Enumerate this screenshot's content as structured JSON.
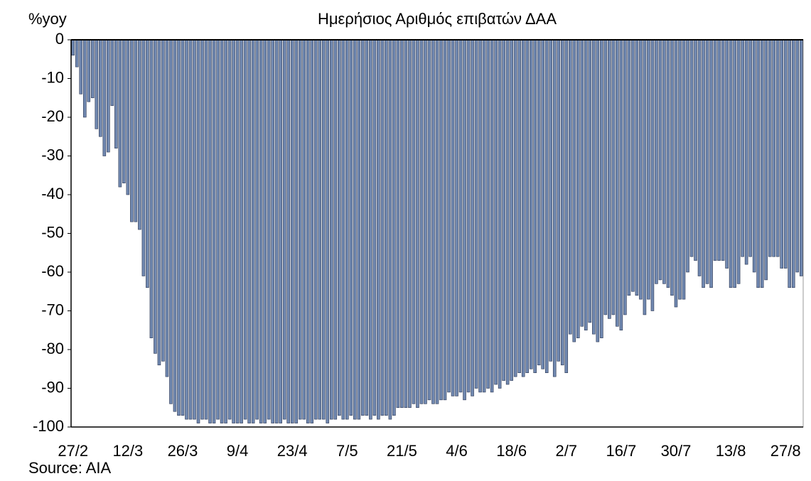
{
  "chart_data": {
    "type": "bar",
    "title": "Ημερήσιος Αριθμός επιβατών ΔΑΑ",
    "y_axis_label": "%yoy",
    "source": "Source: AIA",
    "color": "#7088b0",
    "categories": [
      "27/2",
      null,
      null,
      null,
      null,
      null,
      null,
      null,
      null,
      null,
      null,
      null,
      null,
      null,
      "12/3",
      null,
      null,
      null,
      null,
      null,
      null,
      null,
      null,
      null,
      null,
      null,
      null,
      null,
      "26/3",
      null,
      null,
      null,
      null,
      null,
      null,
      null,
      null,
      null,
      null,
      null,
      null,
      null,
      "9/4",
      null,
      null,
      null,
      null,
      null,
      null,
      null,
      null,
      null,
      null,
      null,
      null,
      null,
      "23/4",
      null,
      null,
      null,
      null,
      null,
      null,
      null,
      null,
      null,
      null,
      null,
      null,
      null,
      "7/5",
      null,
      null,
      null,
      null,
      null,
      null,
      null,
      null,
      null,
      null,
      null,
      null,
      null,
      "21/5",
      null,
      null,
      null,
      null,
      null,
      null,
      null,
      null,
      null,
      null,
      null,
      null,
      null,
      "4/6",
      null,
      null,
      null,
      null,
      null,
      null,
      null,
      null,
      null,
      null,
      null,
      null,
      null,
      "18/6",
      null,
      null,
      null,
      null,
      null,
      null,
      null,
      null,
      null,
      null,
      null,
      null,
      null,
      "2/7",
      null,
      null,
      null,
      null,
      null,
      null,
      null,
      null,
      null,
      null,
      null,
      null,
      null,
      "16/7",
      null,
      null,
      null,
      null,
      null,
      null,
      null,
      null,
      null,
      null,
      null,
      null,
      null,
      "30/7",
      null,
      null,
      null,
      null,
      null,
      null,
      null,
      null,
      null,
      null,
      null,
      null,
      null,
      "13/8",
      null,
      null,
      null,
      null,
      null,
      null,
      null,
      null,
      null,
      null,
      null,
      null,
      null,
      "27/8",
      null,
      null,
      null,
      null
    ],
    "values": [
      -4,
      -7,
      -14,
      -20,
      -16,
      -15,
      -23,
      -25,
      -30,
      -29,
      -17,
      -28,
      -38,
      -37,
      -40,
      -47,
      -47,
      -49,
      -61,
      -64,
      -77,
      -81,
      -84,
      -83,
      -87,
      -94,
      -96,
      -97,
      -97,
      -98,
      -98,
      -98,
      -99,
      -98,
      -98,
      -99,
      -99,
      -98,
      -99,
      -99,
      -98,
      -99,
      -99,
      -99,
      -98,
      -99,
      -99,
      -98,
      -99,
      -99,
      -98,
      -99,
      -99,
      -99,
      -98,
      -99,
      -99,
      -99,
      -98,
      -98,
      -99,
      -99,
      -98,
      -98,
      -98,
      -99,
      -98,
      -98,
      -97,
      -98,
      -98,
      -97,
      -98,
      -98,
      -97,
      -97,
      -98,
      -97,
      -98,
      -97,
      -97,
      -98,
      -97,
      -95,
      -95,
      -95,
      -95,
      -94,
      -95,
      -94,
      -94,
      -93,
      -94,
      -94,
      -93,
      -93,
      -91,
      -92,
      -92,
      -91,
      -93,
      -91,
      -92,
      -90,
      -91,
      -91,
      -90,
      -91,
      -89,
      -90,
      -88,
      -89,
      -88,
      -87,
      -86,
      -87,
      -86,
      -85,
      -86,
      -84,
      -85,
      -86,
      -83,
      -87,
      -83,
      -84,
      -86,
      -76,
      -78,
      -77,
      -74,
      -75,
      -73,
      -76,
      -78,
      -77,
      -71,
      -72,
      -71,
      -74,
      -75,
      -71,
      -66,
      -65,
      -66,
      -67,
      -71,
      -67,
      -70,
      -63,
      -62,
      -63,
      -64,
      -66,
      -69,
      -67,
      -67,
      -60,
      -56,
      -57,
      -61,
      -64,
      -63,
      -64,
      -57,
      -57,
      -57,
      -59,
      -64,
      -64,
      -63,
      -56,
      -58,
      -56,
      -60,
      -64,
      -64,
      -62,
      -56,
      -56,
      -56,
      -59,
      -59,
      -64,
      -64,
      -60,
      -61
    ],
    "ylim": [
      -100,
      0
    ],
    "yticks": [
      0,
      -10,
      -20,
      -30,
      -40,
      -50,
      -60,
      -70,
      -80,
      -90,
      -100
    ]
  }
}
